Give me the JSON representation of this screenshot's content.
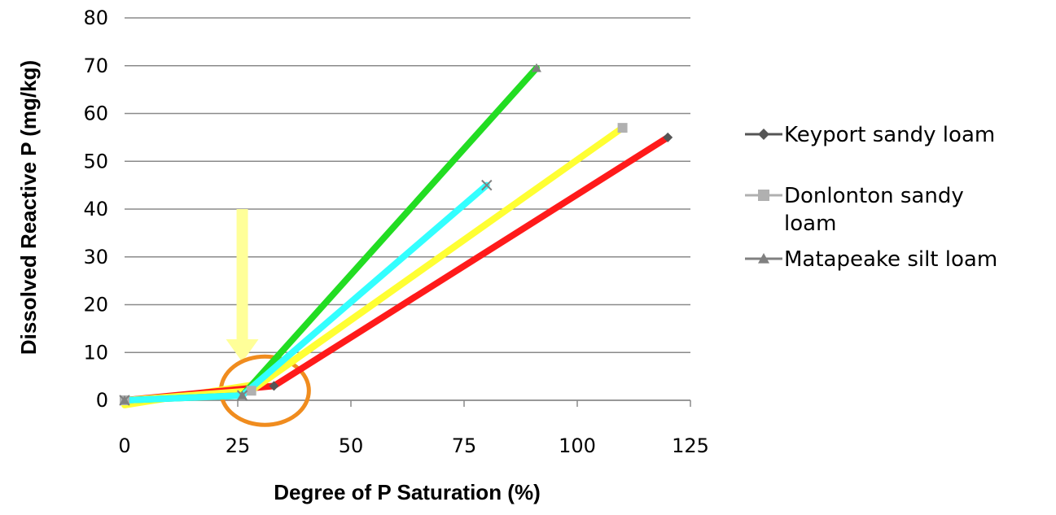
{
  "chart_data": {
    "type": "line",
    "title": "",
    "xlabel": "Degree of P Saturation (%)",
    "ylabel": "Dissolved Reactive P (mg/kg)",
    "xlim": [
      0,
      125
    ],
    "ylim": [
      0,
      80
    ],
    "xticks": [
      "0",
      "25",
      "50",
      "75",
      "100",
      "125"
    ],
    "yticks": [
      "0",
      "10",
      "20",
      "30",
      "40",
      "50",
      "60",
      "70",
      "80"
    ],
    "grid": "horizontal",
    "legend_position": "right",
    "legend": [
      {
        "label_lines": [
          "Keyport sandy loam"
        ],
        "marker": "diamond",
        "color": "#555555"
      },
      {
        "label_lines": [
          "Donlonton sandy",
          "loam"
        ],
        "marker": "square",
        "color": "#b0b0b0"
      },
      {
        "label_lines": [
          "Matapeake silt loam"
        ],
        "marker": "triangle",
        "color": "#808080"
      }
    ],
    "series": [
      {
        "color": "#ff1a1a",
        "marker": "diamond",
        "marker_color": "#555555",
        "x": [
          0,
          33,
          120
        ],
        "y": [
          0,
          3,
          55
        ]
      },
      {
        "color": "#ffff33",
        "marker": "square",
        "marker_color": "#b0b0b0",
        "x": [
          0,
          28,
          110
        ],
        "y": [
          0,
          2,
          57
        ]
      },
      {
        "color": "#22dd22",
        "marker": "triangle",
        "marker_color": "#808080",
        "x": [
          0,
          26,
          91
        ],
        "y": [
          0,
          1,
          69.5
        ]
      },
      {
        "color": "#33ffff",
        "marker": "x",
        "marker_color": "#808080",
        "x": [
          0,
          26,
          80
        ],
        "y": [
          0,
          1,
          45
        ]
      }
    ],
    "fit_lines": [
      {
        "color": "#ffff33",
        "x": [
          0,
          30,
          110
        ],
        "y": [
          -1,
          3.5,
          57
        ]
      }
    ],
    "annotations": {
      "arrow": {
        "x": 26,
        "y_from": 40,
        "y_to": 8,
        "color": "#ffff99"
      },
      "circle": {
        "cx": 31,
        "cy": 2,
        "color": "#f08c1e"
      }
    }
  }
}
